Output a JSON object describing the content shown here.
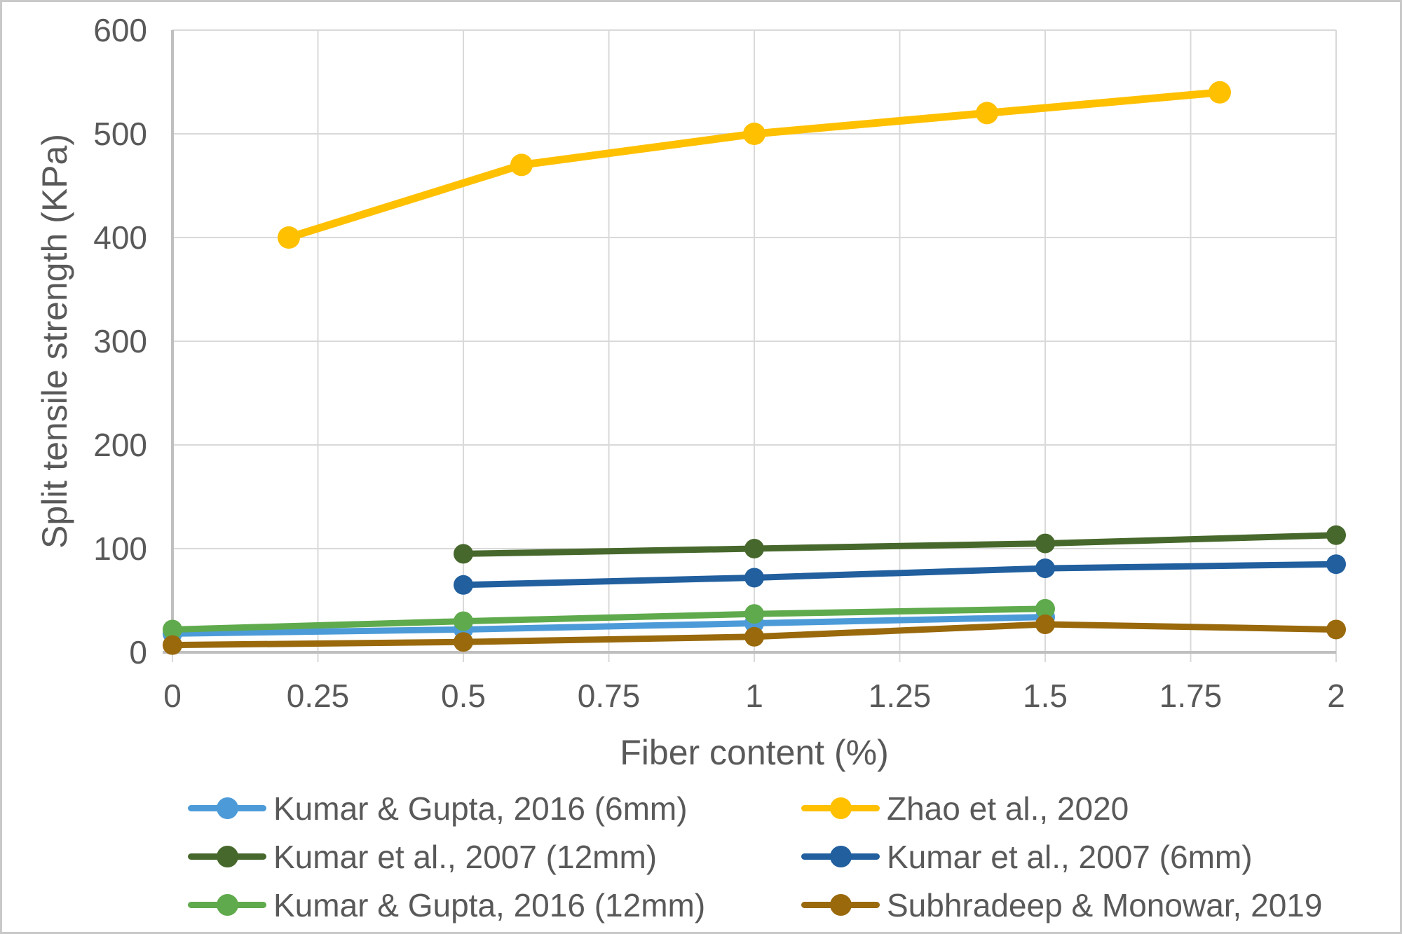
{
  "figure": {
    "border_color": "#c9c9c9",
    "background": "#ffffff",
    "text_color": "#595959",
    "gridline_color": "#d9d9d9",
    "axis_line_color": "#bfbfbf"
  },
  "axes": {
    "x_title": "Fiber content (%)",
    "y_title": "Split tensile strength (KPa)",
    "x_ticks": [
      {
        "label": "0",
        "value": 0
      },
      {
        "label": "0.25",
        "value": 0.25
      },
      {
        "label": "0.5",
        "value": 0.5
      },
      {
        "label": "0.75",
        "value": 0.75
      },
      {
        "label": "1",
        "value": 1
      },
      {
        "label": "1.25",
        "value": 1.25
      },
      {
        "label": "1.5",
        "value": 1.5
      },
      {
        "label": "1.75",
        "value": 1.75
      },
      {
        "label": "2",
        "value": 2
      }
    ],
    "y_ticks": [
      {
        "label": "0",
        "value": 0
      },
      {
        "label": "100",
        "value": 100
      },
      {
        "label": "200",
        "value": 200
      },
      {
        "label": "300",
        "value": 300
      },
      {
        "label": "400",
        "value": 400
      },
      {
        "label": "500",
        "value": 500
      },
      {
        "label": "600",
        "value": 600
      }
    ]
  },
  "chart_data": {
    "type": "line",
    "title": "",
    "xlabel": "Fiber content (%)",
    "ylabel": "Split tensile strength (KPa)",
    "xlim": [
      0,
      2
    ],
    "ylim": [
      0,
      600
    ],
    "grid": true,
    "legend_position": "bottom",
    "series": [
      {
        "name": "Kumar & Gupta, 2016 (6mm)",
        "color": "#4C9BD8",
        "x": [
          0,
          0.5,
          1,
          1.5
        ],
        "y": [
          18,
          22,
          28,
          34
        ]
      },
      {
        "name": "Kumar & Gupta, 2016 (12mm)",
        "color": "#5FAA4C",
        "x": [
          0,
          0.5,
          1,
          1.5
        ],
        "y": [
          22,
          30,
          37,
          42
        ]
      },
      {
        "name": "Subhradeep & Monowar, 2019",
        "color": "#99690C",
        "x": [
          0,
          0.5,
          1,
          1.5,
          2
        ],
        "y": [
          7,
          10,
          15,
          27,
          22
        ]
      },
      {
        "name": "Kumar et al., 2007 (12mm)",
        "color": "#47682C",
        "x": [
          0.5,
          1,
          1.5,
          2
        ],
        "y": [
          95,
          100,
          105,
          113
        ]
      },
      {
        "name": "Kumar et al., 2007 (6mm)",
        "color": "#215F9E",
        "x": [
          0.5,
          1,
          1.5,
          2
        ],
        "y": [
          65,
          72,
          81,
          85
        ]
      },
      {
        "name": "Zhao et al., 2020",
        "color": "#FFC000",
        "x": [
          0.2,
          0.6,
          1,
          1.4,
          1.8
        ],
        "y": [
          400,
          470,
          500,
          520,
          540
        ],
        "line_width": 11,
        "marker_r": 16
      }
    ]
  },
  "legend": {
    "columns": [
      {
        "items": [
          {
            "label": "Kumar & Gupta, 2016 (6mm)",
            "color": "#4C9BD8"
          },
          {
            "label": "Kumar et al., 2007 (12mm)",
            "color": "#47682C"
          },
          {
            "label": "Kumar & Gupta, 2016 (12mm)",
            "color": "#5FAA4C"
          }
        ]
      },
      {
        "items": [
          {
            "label": "Zhao et al., 2020",
            "color": "#FFC000"
          },
          {
            "label": "Kumar et al., 2007 (6mm)",
            "color": "#215F9E"
          },
          {
            "label": "Subhradeep & Monowar, 2019",
            "color": "#99690C"
          }
        ]
      }
    ]
  }
}
